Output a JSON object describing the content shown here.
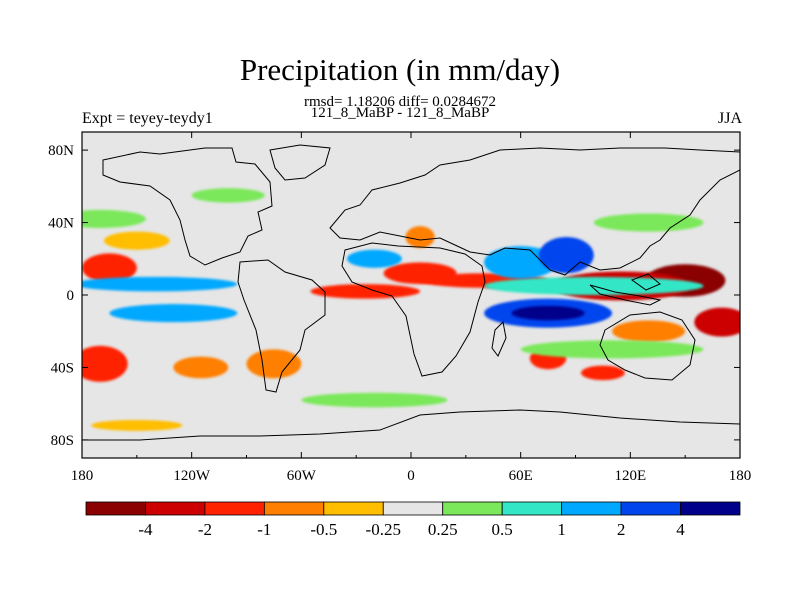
{
  "header": {
    "title": "Precipitation (in mm/day)",
    "subtitle_line1": "rmsd= 1.18206 diff= 0.0284672",
    "subtitle_line2": "121_8_MaBP - 121_8_MaBP",
    "left_label": "Expt = teyey-teydy1",
    "right_label": "JJA"
  },
  "chart_data": {
    "type": "heatmap",
    "title": "Precipitation (in mm/day)",
    "projection": "cylindrical equidistant",
    "season": "JJA",
    "xlim": [
      -180,
      180
    ],
    "ylim": [
      -90,
      90
    ],
    "x_ticks": [
      {
        "value": -180,
        "label": "180"
      },
      {
        "value": -120,
        "label": "120W"
      },
      {
        "value": -60,
        "label": "60W"
      },
      {
        "value": 0,
        "label": "0"
      },
      {
        "value": 60,
        "label": "60E"
      },
      {
        "value": 120,
        "label": "120E"
      },
      {
        "value": 180,
        "label": "180"
      }
    ],
    "y_ticks": [
      {
        "value": 80,
        "label": "80N"
      },
      {
        "value": 40,
        "label": "40N"
      },
      {
        "value": 0,
        "label": "0"
      },
      {
        "value": -40,
        "label": "40S"
      },
      {
        "value": -80,
        "label": "80S"
      }
    ],
    "colorbar": {
      "levels": [
        {
          "value": -4,
          "label": "-4"
        },
        {
          "value": -2,
          "label": "-2"
        },
        {
          "value": -1,
          "label": "-1"
        },
        {
          "value": -0.5,
          "label": "-0.5"
        },
        {
          "value": -0.25,
          "label": "-0.25"
        },
        {
          "value": 0.25,
          "label": "0.25"
        },
        {
          "value": 0.5,
          "label": "0.5"
        },
        {
          "value": 1,
          "label": "1"
        },
        {
          "value": 2,
          "label": "2"
        },
        {
          "value": 4,
          "label": "4"
        }
      ],
      "colors": [
        "#8b0000",
        "#cc0000",
        "#ff2200",
        "#ff7f00",
        "#ffbe00",
        "#e6e6e6",
        "#7ae85a",
        "#33e6c6",
        "#00a8ff",
        "#0044ee",
        "#00008b"
      ]
    },
    "anomaly_regions": [
      {
        "lon": 150,
        "lat": 8,
        "rx": 22,
        "ry": 9,
        "value": -5
      },
      {
        "lon": 115,
        "lat": 5,
        "rx": 38,
        "ry": 8,
        "value": -3
      },
      {
        "lon": 170,
        "lat": -15,
        "rx": 15,
        "ry": 8,
        "value": -2.5
      },
      {
        "lon": -25,
        "lat": 2,
        "rx": 30,
        "ry": 4,
        "value": -1.5
      },
      {
        "lon": 5,
        "lat": 12,
        "rx": 20,
        "ry": 6,
        "value": -1.2
      },
      {
        "lon": 40,
        "lat": 8,
        "rx": 35,
        "ry": 4,
        "value": -1.2
      },
      {
        "lon": -170,
        "lat": -38,
        "rx": 15,
        "ry": 10,
        "value": -2
      },
      {
        "lon": -165,
        "lat": 15,
        "rx": 15,
        "ry": 8,
        "value": -1.5
      },
      {
        "lon": -75,
        "lat": -38,
        "rx": 15,
        "ry": 8,
        "value": -0.8
      },
      {
        "lon": -115,
        "lat": -40,
        "rx": 15,
        "ry": 6,
        "value": -0.6
      },
      {
        "lon": 130,
        "lat": -20,
        "rx": 20,
        "ry": 6,
        "value": -0.7
      },
      {
        "lon": 75,
        "lat": -35,
        "rx": 10,
        "ry": 6,
        "value": -1.5
      },
      {
        "lon": 105,
        "lat": -43,
        "rx": 12,
        "ry": 4,
        "value": -1.2
      },
      {
        "lon": 5,
        "lat": 32,
        "rx": 8,
        "ry": 6,
        "value": -0.6
      },
      {
        "lon": -150,
        "lat": 30,
        "rx": 18,
        "ry": 5,
        "value": -0.4
      },
      {
        "lon": -150,
        "lat": -72,
        "rx": 25,
        "ry": 3,
        "value": -0.4
      },
      {
        "lon": 100,
        "lat": 5,
        "rx": 60,
        "ry": 5,
        "value": 0.7
      },
      {
        "lon": 75,
        "lat": -10,
        "rx": 35,
        "ry": 8,
        "value": 2.2
      },
      {
        "lon": 75,
        "lat": -10,
        "rx": 20,
        "ry": 4,
        "value": 5
      },
      {
        "lon": -140,
        "lat": 6,
        "rx": 45,
        "ry": 4,
        "value": 1.5
      },
      {
        "lon": -130,
        "lat": -10,
        "rx": 35,
        "ry": 5,
        "value": 1.2
      },
      {
        "lon": 60,
        "lat": 18,
        "rx": 20,
        "ry": 9,
        "value": 1.5
      },
      {
        "lon": 85,
        "lat": 22,
        "rx": 15,
        "ry": 10,
        "value": 2.3
      },
      {
        "lon": -20,
        "lat": 20,
        "rx": 15,
        "ry": 5,
        "value": 1.2
      },
      {
        "lon": -170,
        "lat": 42,
        "rx": 25,
        "ry": 5,
        "value": 0.35
      },
      {
        "lon": 130,
        "lat": 40,
        "rx": 30,
        "ry": 5,
        "value": 0.35
      },
      {
        "lon": 110,
        "lat": -30,
        "rx": 50,
        "ry": 5,
        "value": 0.35
      },
      {
        "lon": -100,
        "lat": 55,
        "rx": 20,
        "ry": 4,
        "value": 0.35
      },
      {
        "lon": -20,
        "lat": -58,
        "rx": 40,
        "ry": 4,
        "value": 0.35
      }
    ]
  }
}
